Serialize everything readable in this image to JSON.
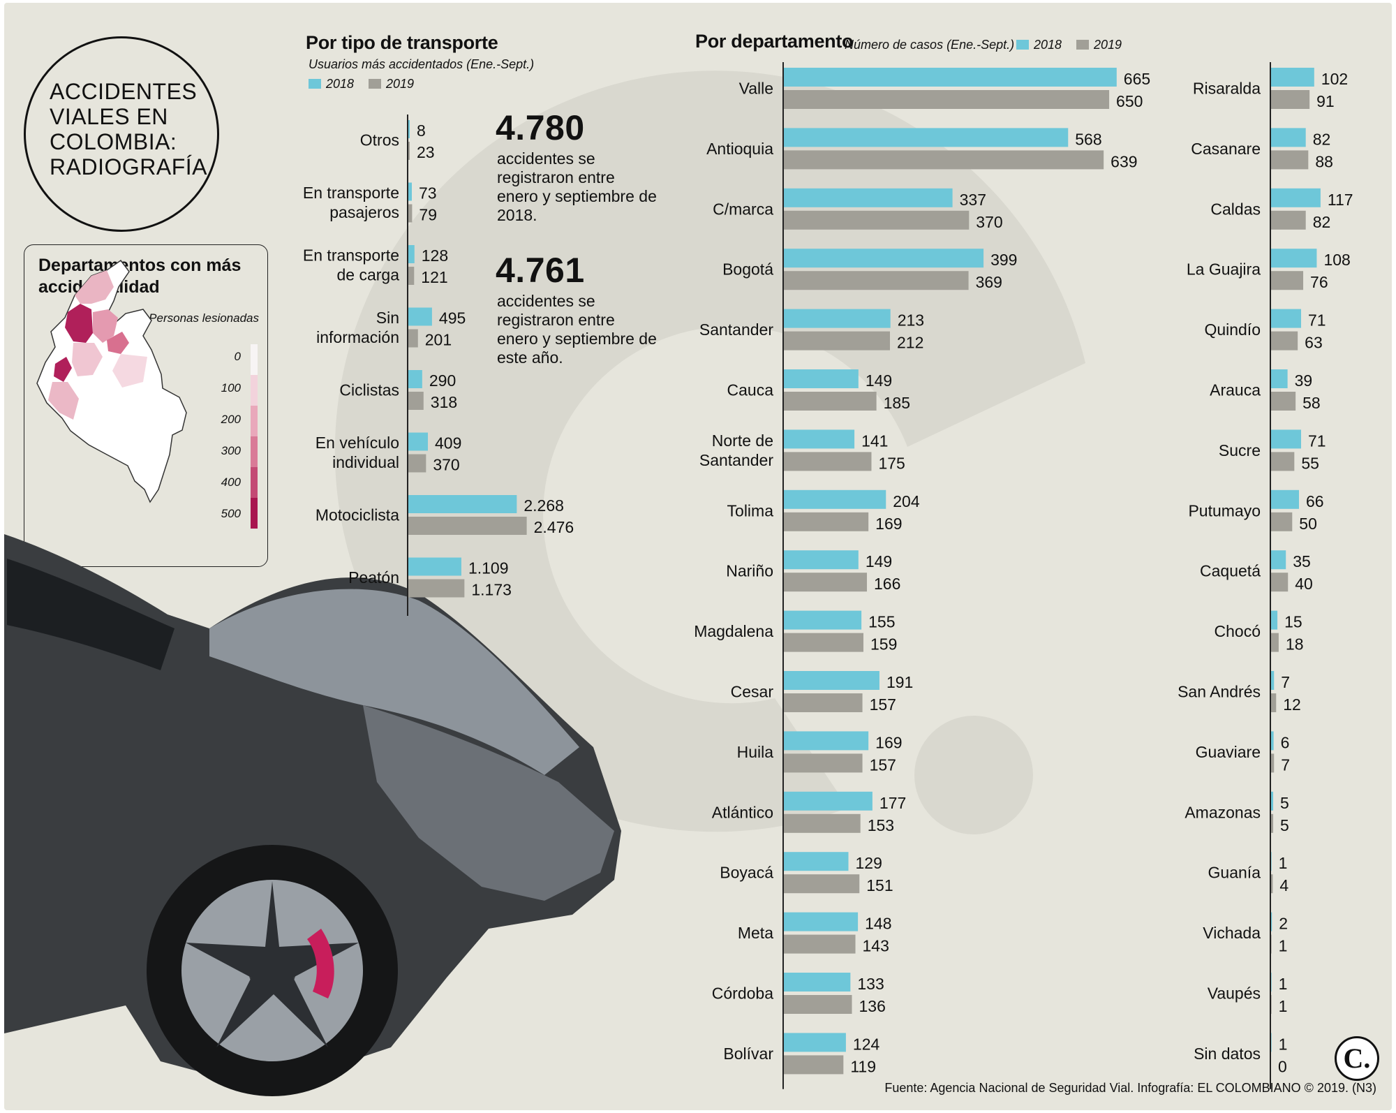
{
  "title": "ACCIDENTES VIALES EN COLOMBIA: RADIOGRAFÍA",
  "map": {
    "title": "Departamentos con más accidentalidad",
    "scale_title": "Personas lesionadas",
    "scale_labels": [
      "0",
      "100",
      "200",
      "300",
      "400",
      "500"
    ]
  },
  "transport": {
    "title": "Por tipo de transporte",
    "subtitle": "Usuarios más accidentados (Ene.-Sept.)"
  },
  "department": {
    "title": "Por departamento",
    "subtitle": "Número de casos (Ene.-Sept.)"
  },
  "legend": {
    "y2018": "2018",
    "y2019": "2019"
  },
  "colors": {
    "c2018": "#6ec7d9",
    "c2019": "#a19f97",
    "background": "#e6e5dc"
  },
  "stats": [
    {
      "number": "4.780",
      "text": "accidentes se registraron entre enero y septiembre de 2018."
    },
    {
      "number": "4.761",
      "text": "accidentes se registraron entre enero y septiembre de este año."
    }
  ],
  "source": "Fuente: Agencia Nacional de Seguridad Vial. Infografía: EL COLOMBIANO © 2019. (N3)",
  "logo": "C.",
  "chart_data": [
    {
      "type": "bar",
      "title": "Por tipo de transporte",
      "subtitle": "Usuarios más accidentados (Ene.-Sept.)",
      "categories": [
        [
          "Otros"
        ],
        [
          "En transporte",
          "pasajeros"
        ],
        [
          "En transporte",
          "de carga"
        ],
        [
          "Sin",
          "información"
        ],
        [
          "Ciclistas"
        ],
        [
          "En vehículo",
          "individual"
        ],
        [
          "Motociclista"
        ],
        [
          "Peatón"
        ]
      ],
      "series": [
        {
          "name": "2018",
          "values": [
            8,
            73,
            128,
            495,
            290,
            409,
            2268,
            1109
          ],
          "labels": [
            "8",
            "73",
            "128",
            "495",
            "290",
            "409",
            "2.268",
            "1.109"
          ]
        },
        {
          "name": "2019",
          "values": [
            23,
            79,
            121,
            201,
            318,
            370,
            2476,
            1173
          ],
          "labels": [
            "23",
            "79",
            "121",
            "201",
            "318",
            "370",
            "2.476",
            "1.173"
          ]
        }
      ]
    },
    {
      "type": "bar",
      "title": "Por departamento",
      "subtitle": "Número de casos (Ene.-Sept.)",
      "categories": [
        [
          "Valle"
        ],
        [
          "Antioquia"
        ],
        [
          "C/marca"
        ],
        [
          "Bogotá"
        ],
        [
          "Santander"
        ],
        [
          "Cauca"
        ],
        [
          "Norte de",
          "Santander"
        ],
        [
          "Tolima"
        ],
        [
          "Nariño"
        ],
        [
          "Magdalena"
        ],
        [
          "Cesar"
        ],
        [
          "Huila"
        ],
        [
          "Atlántico"
        ],
        [
          "Boyacá"
        ],
        [
          "Meta"
        ],
        [
          "Córdoba"
        ],
        [
          "Bolívar"
        ]
      ],
      "series": [
        {
          "name": "2018",
          "values": [
            665,
            568,
            337,
            399,
            213,
            149,
            141,
            204,
            149,
            155,
            191,
            169,
            177,
            129,
            148,
            133,
            124
          ]
        },
        {
          "name": "2019",
          "values": [
            650,
            639,
            370,
            369,
            212,
            185,
            175,
            169,
            166,
            159,
            157,
            157,
            153,
            151,
            143,
            136,
            119
          ]
        }
      ]
    },
    {
      "type": "bar",
      "title": "",
      "categories": [
        [
          "Risaralda"
        ],
        [
          "Casanare"
        ],
        [
          "Caldas"
        ],
        [
          "La Guajira"
        ],
        [
          "Quindío"
        ],
        [
          "Arauca"
        ],
        [
          "Sucre"
        ],
        [
          "Putumayo"
        ],
        [
          "Caquetá"
        ],
        [
          "Chocó"
        ],
        [
          "San Andrés"
        ],
        [
          "Guaviare"
        ],
        [
          "Amazonas"
        ],
        [
          "Guanía"
        ],
        [
          "Vichada"
        ],
        [
          "Vaupés"
        ],
        [
          "Sin datos"
        ]
      ],
      "series": [
        {
          "name": "2018",
          "values": [
            102,
            82,
            117,
            108,
            71,
            39,
            71,
            66,
            35,
            15,
            7,
            6,
            5,
            1,
            2,
            1,
            1
          ]
        },
        {
          "name": "2019",
          "values": [
            91,
            88,
            82,
            76,
            63,
            58,
            55,
            50,
            40,
            18,
            12,
            7,
            5,
            4,
            1,
            1,
            0
          ]
        }
      ]
    }
  ]
}
